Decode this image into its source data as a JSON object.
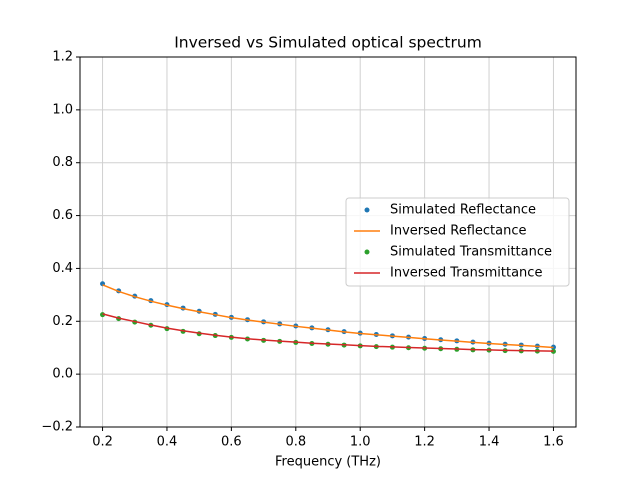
{
  "chart_data": {
    "type": "line",
    "title": "Inversed vs Simulated optical spectrum",
    "x_label": "Frequency (THz)",
    "x": [
      0.2,
      0.25,
      0.3,
      0.35,
      0.4,
      0.45,
      0.5,
      0.55,
      0.6,
      0.65,
      0.7,
      0.75,
      0.8,
      0.85,
      0.9,
      0.95,
      1.0,
      1.05,
      1.1,
      1.15,
      1.2,
      1.25,
      1.3,
      1.35,
      1.4,
      1.45,
      1.5,
      1.55,
      1.6
    ],
    "series": [
      {
        "name": "Simulated Reflectance",
        "color": "#1f77b4",
        "mode": "markers",
        "values": [
          0.342,
          0.315,
          0.295,
          0.278,
          0.263,
          0.25,
          0.238,
          0.226,
          0.215,
          0.206,
          0.198,
          0.19,
          0.182,
          0.175,
          0.168,
          0.161,
          0.155,
          0.15,
          0.145,
          0.14,
          0.135,
          0.13,
          0.126,
          0.121,
          0.117,
          0.113,
          0.11,
          0.106,
          0.102
        ]
      },
      {
        "name": "Inversed Reflectance",
        "color": "#ff7f0e",
        "mode": "lines",
        "values": [
          0.338,
          0.313,
          0.293,
          0.276,
          0.261,
          0.248,
          0.236,
          0.225,
          0.214,
          0.205,
          0.197,
          0.189,
          0.181,
          0.174,
          0.167,
          0.16,
          0.154,
          0.149,
          0.144,
          0.139,
          0.134,
          0.129,
          0.125,
          0.12,
          0.116,
          0.112,
          0.109,
          0.105,
          0.101
        ]
      },
      {
        "name": "Simulated Transmittance",
        "color": "#2ca02c",
        "mode": "markers",
        "values": [
          0.225,
          0.21,
          0.197,
          0.185,
          0.172,
          0.162,
          0.153,
          0.146,
          0.139,
          0.133,
          0.128,
          0.124,
          0.12,
          0.116,
          0.113,
          0.11,
          0.107,
          0.104,
          0.102,
          0.1,
          0.098,
          0.096,
          0.094,
          0.092,
          0.091,
          0.089,
          0.088,
          0.087,
          0.086
        ]
      },
      {
        "name": "Inversed Transmittance",
        "color": "#d62728",
        "mode": "lines",
        "values": [
          0.228,
          0.212,
          0.199,
          0.186,
          0.174,
          0.164,
          0.155,
          0.147,
          0.14,
          0.134,
          0.129,
          0.125,
          0.121,
          0.117,
          0.114,
          0.111,
          0.108,
          0.105,
          0.103,
          0.101,
          0.099,
          0.097,
          0.095,
          0.093,
          0.092,
          0.09,
          0.089,
          0.088,
          0.087
        ]
      }
    ],
    "xlim": [
      0.13,
      1.67
    ],
    "ylim": [
      -0.2,
      1.2
    ],
    "xticks": [
      0.2,
      0.4,
      0.6,
      0.8,
      {
        "value": 1.0,
        "label": "1.0"
      },
      1.2,
      1.4,
      1.6
    ],
    "yticks": [
      {
        "value": -0.2,
        "label": "−0.2"
      },
      {
        "value": 0.0,
        "label": "0.0"
      },
      0.2,
      0.4,
      0.6,
      0.8,
      {
        "value": 1.0,
        "label": "1.0"
      },
      1.2
    ],
    "grid": true,
    "legend": "center right"
  }
}
